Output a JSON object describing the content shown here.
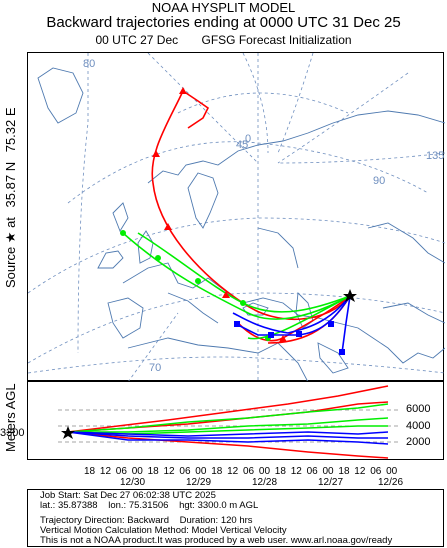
{
  "header": {
    "line1": "NOAA HYSPLIT MODEL",
    "line2": "Backward trajectories ending at 0000 UTC 31 Dec 25",
    "line3a": "00 UTC 27 Dec",
    "line3b": "GFSG  Forecast Initialization"
  },
  "side": {
    "source": "Source ★ at",
    "lat": "35.87 N",
    "lon": "75.32 E"
  },
  "map_labels": {
    "lat80": "80",
    "lon0": "0",
    "lon45": "45",
    "lon90": "90",
    "lon135": "135",
    "lat70": "70"
  },
  "profile": {
    "ylabel": "Meters AGL",
    "start_height": "3300",
    "yticks": [
      "6000",
      "4000",
      "2000"
    ],
    "hour_ticks": [
      "18",
      "12",
      "06",
      "00",
      "18",
      "12",
      "06",
      "00",
      "18",
      "12",
      "06",
      "00",
      "18",
      "12",
      "06",
      "00",
      "18",
      "12",
      "06",
      "00"
    ],
    "dates": [
      "12/30",
      "12/29",
      "12/28",
      "12/27",
      "12/26"
    ]
  },
  "info": {
    "job_start": "Job Start: Sat Dec 27 06:02:38 UTC 2025",
    "lat": "lat.: 35.87388",
    "lon": "lon.: 75.31506",
    "hgt": "hgt: 3300.0 m AGL",
    "direction": "Trajectory Direction: Backward",
    "duration": "Duration: 120 hrs",
    "vertical": "Vertical Motion Calculation Method: Model Vertical Velocity",
    "disclaimer": "This is not a NOAA product.It was produced by a web user. www.arl.noaa.gov/ready"
  },
  "colors": {
    "red": "#ff0000",
    "green": "#00ee00",
    "blue": "#0000ff",
    "black": "#000000",
    "coast": "#4f7ab0",
    "grid": "#6f8fbf"
  }
}
